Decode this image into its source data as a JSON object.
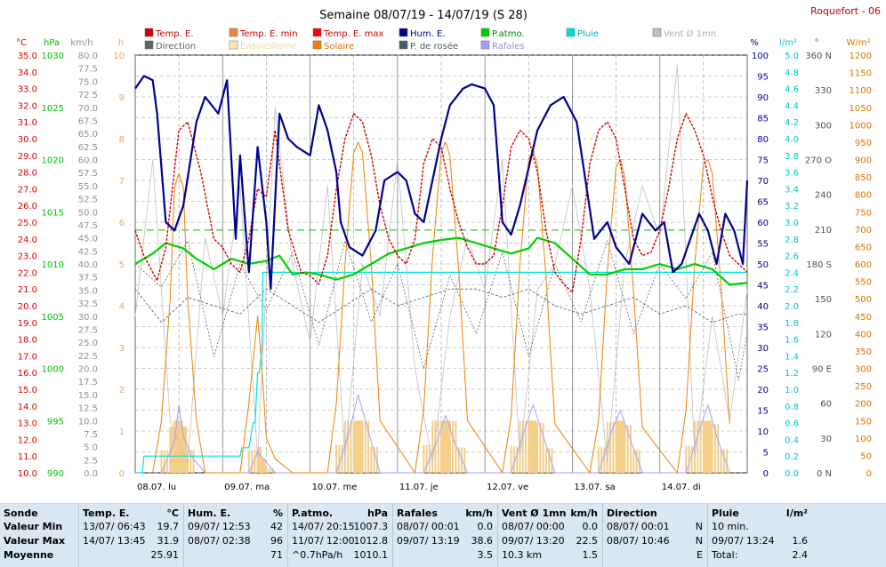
{
  "title": "Semaine 08/07/19 - 14/07/19 (S 28)",
  "station": "Roquefort - 06",
  "axes": {
    "temp": {
      "unit": "°C",
      "min": 10,
      "max": 35,
      "step": 1,
      "color": "#e00000"
    },
    "press": {
      "unit": "hPa",
      "min": 990,
      "max": 1030,
      "step": 5,
      "color": "#00c000"
    },
    "wind": {
      "unit": "km/h",
      "min": 0,
      "max": 80,
      "step": 2.5,
      "color": "#909090"
    },
    "sun": {
      "unit": "h",
      "min": 0,
      "max": 10,
      "step": 1,
      "color": "#f0a060"
    },
    "hum": {
      "unit": "%",
      "min": 0,
      "max": 100,
      "step": 5,
      "color": "#000090"
    },
    "rain": {
      "unit": "l/m²",
      "min": 0,
      "max": 5,
      "step": 0.2,
      "color": "#00c8c8"
    },
    "dir": {
      "unit": "°",
      "min": 0,
      "max": 360,
      "step": 30,
      "color": "#505050",
      "labels": {
        "0": "0 N",
        "90": "90 E",
        "180": "180 S",
        "270": "270 O",
        "360": "360 N"
      }
    },
    "solar": {
      "unit": "W/m²",
      "min": 0,
      "max": 1200,
      "step": 50,
      "color": "#e07000"
    }
  },
  "legend": [
    {
      "label": "Temp. E.",
      "color": "#d00000",
      "text_color": "#d00000"
    },
    {
      "label": "Temp. E. min",
      "color": "#f08040",
      "text_color": "#d00000"
    },
    {
      "label": "Temp. E. max",
      "color": "#ff0000",
      "text_color": "#d00000"
    },
    {
      "label": "Hum. E.",
      "color": "#000090",
      "text_color": "#000090"
    },
    {
      "label": "P.atmo.",
      "color": "#00d000",
      "text_color": "#008000"
    },
    {
      "label": "Pluie",
      "color": "#00e0e0",
      "text_color": "#00b0b0"
    },
    {
      "label": "Vent Ø 1mn",
      "color": "#c0c0c0",
      "text_color": "#b0b0b0"
    },
    {
      "label": "Direction",
      "color": "#606060",
      "text_color": "#606060"
    },
    {
      "label": "Ensoleilleme",
      "color": "#ffe8b0",
      "text_color": "#f0d8a0"
    },
    {
      "label": "Solaire",
      "color": "#f08000",
      "text_color": "#e07000"
    },
    {
      "label": "P. de rosée",
      "color": "#406060",
      "text_color": "#406060"
    },
    {
      "label": "Rafales",
      "color": "#a0a0ff",
      "text_color": "#9090e0"
    }
  ],
  "x_labels": [
    "08.07. lu",
    "09.07. ma",
    "10.07. me",
    "11.07. je",
    "12.07. ve",
    "13.07. sa",
    "14.07. di"
  ],
  "chart_data": {
    "type": "line",
    "title": "Semaine 08/07/19 - 14/07/19 (S 28)",
    "x_unit": "days from 08.07 00:00",
    "xlim": [
      0,
      7
    ],
    "series": [
      {
        "name": "Temp. E.",
        "axis": "temp",
        "color": "#d00000",
        "x": [
          0,
          0.1,
          0.25,
          0.35,
          0.5,
          0.6,
          0.75,
          0.9,
          1.0,
          1.1,
          1.2,
          1.3,
          1.4,
          1.5,
          1.6,
          1.75,
          1.9,
          2.0,
          2.1,
          2.2,
          2.3,
          2.4,
          2.5,
          2.6,
          2.7,
          2.8,
          2.9,
          3.0,
          3.1,
          3.2,
          3.3,
          3.4,
          3.5,
          3.6,
          3.7,
          3.8,
          3.9,
          4.0,
          4.1,
          4.2,
          4.3,
          4.4,
          4.5,
          4.6,
          4.7,
          4.8,
          4.9,
          5.0,
          5.1,
          5.2,
          5.3,
          5.4,
          5.5,
          5.6,
          5.7,
          5.8,
          5.9,
          6.0,
          6.1,
          6.2,
          6.3,
          6.4,
          6.5,
          6.6,
          6.7,
          6.8,
          6.9,
          7.0
        ],
        "y": [
          24.5,
          23,
          21.5,
          23.5,
          30.5,
          31,
          28,
          24,
          23.5,
          22.5,
          22,
          24,
          27,
          26.5,
          30.5,
          24.5,
          22,
          21.8,
          21.3,
          23,
          27,
          30,
          31.5,
          31,
          29,
          26,
          24,
          23,
          22.5,
          24,
          28.5,
          30,
          29.5,
          27,
          25,
          23.5,
          22.5,
          22.5,
          23,
          26,
          29.5,
          30.5,
          30,
          28,
          24.5,
          22,
          21.3,
          20.8,
          24,
          28.5,
          30.5,
          31,
          30,
          27,
          24,
          23,
          23.2,
          24.5,
          27,
          30,
          31.5,
          30.5,
          29,
          26.5,
          24.5,
          23,
          22.5,
          22
        ]
      },
      {
        "name": "Hum. E.",
        "axis": "hum",
        "color": "#000090",
        "x": [
          0,
          0.1,
          0.2,
          0.25,
          0.35,
          0.45,
          0.55,
          0.7,
          0.8,
          0.95,
          1.05,
          1.15,
          1.2,
          1.3,
          1.4,
          1.5,
          1.55,
          1.65,
          1.75,
          1.85,
          2.0,
          2.1,
          2.2,
          2.3,
          2.35,
          2.45,
          2.6,
          2.75,
          2.85,
          3.0,
          3.1,
          3.2,
          3.3,
          3.4,
          3.5,
          3.6,
          3.75,
          3.85,
          4.0,
          4.1,
          4.2,
          4.3,
          4.4,
          4.5,
          4.6,
          4.75,
          4.9,
          5.05,
          5.15,
          5.25,
          5.4,
          5.5,
          5.65,
          5.8,
          5.95,
          6.05,
          6.15,
          6.25,
          6.35,
          6.45,
          6.55,
          6.65,
          6.75,
          6.85,
          6.95,
          7.0
        ],
        "y": [
          92,
          95,
          94,
          86,
          60,
          58,
          64,
          84,
          90,
          86,
          94,
          56,
          76,
          48,
          78,
          60,
          44,
          86,
          80,
          78,
          76,
          88,
          82,
          72,
          60,
          54,
          52,
          58,
          70,
          72,
          70,
          62,
          60,
          70,
          80,
          88,
          92,
          93,
          92,
          88,
          60,
          57,
          64,
          73,
          82,
          88,
          90,
          84,
          70,
          56,
          60,
          54,
          50,
          62,
          58,
          60,
          48,
          50,
          56,
          62,
          58,
          50,
          62,
          58,
          50,
          70
        ]
      },
      {
        "name": "P.atmo.",
        "axis": "press",
        "color": "#00d000",
        "x": [
          0,
          0.2,
          0.35,
          0.55,
          0.7,
          0.9,
          1.1,
          1.3,
          1.5,
          1.65,
          1.8,
          1.95,
          2.1,
          2.3,
          2.5,
          2.7,
          2.9,
          3.1,
          3.3,
          3.5,
          3.7,
          3.9,
          4.1,
          4.3,
          4.5,
          4.6,
          4.8,
          5.0,
          5.2,
          5.4,
          5.6,
          5.8,
          6.0,
          6.2,
          6.4,
          6.6,
          6.8,
          7.0
        ],
        "y": [
          1010,
          1011,
          1012,
          1011.5,
          1010.5,
          1009.5,
          1010.5,
          1010,
          1010.3,
          1010.8,
          1009,
          1009.2,
          1009,
          1008.5,
          1009,
          1010,
          1011,
          1011.5,
          1012,
          1012.3,
          1012.5,
          1012,
          1011.5,
          1011,
          1011.5,
          1012.5,
          1012,
          1010.5,
          1009,
          1009,
          1009.5,
          1009.5,
          1010,
          1009.5,
          1010,
          1009.5,
          1008,
          1008.2
        ]
      },
      {
        "name": "Pluie",
        "axis": "rain",
        "color": "#00e0e0",
        "x": [
          0,
          0.08,
          0.1,
          1.2,
          1.22,
          1.3,
          1.35,
          1.37,
          1.4,
          1.42,
          1.45,
          1.46,
          1.48,
          7.0
        ],
        "y": [
          0,
          0,
          0.2,
          0.2,
          0.3,
          0.3,
          0.6,
          0.6,
          1.2,
          1.2,
          1.5,
          2.4,
          2.4,
          2.4
        ]
      },
      {
        "name": "P. de rosée",
        "axis": "temp",
        "color": "#406060",
        "x": [
          0,
          0.3,
          0.6,
          0.9,
          1.2,
          1.5,
          1.8,
          2.1,
          2.4,
          2.7,
          3.0,
          3.3,
          3.6,
          3.9,
          4.2,
          4.5,
          4.8,
          5.1,
          5.4,
          5.7,
          6.0,
          6.3,
          6.6,
          6.9,
          7.0
        ],
        "y": [
          21,
          19,
          20.5,
          20,
          19.5,
          21,
          20,
          19,
          20,
          21,
          20,
          20.5,
          21,
          21,
          20.5,
          21,
          20,
          19.5,
          20,
          20.5,
          19.5,
          20,
          19,
          19.5,
          19.5
        ]
      },
      {
        "name": "Solaire",
        "axis": "solar",
        "color": "#f08000",
        "x": [
          0.2,
          0.3,
          0.4,
          0.45,
          0.5,
          0.55,
          0.6,
          0.7,
          0.8,
          1.2,
          1.3,
          1.4,
          1.45,
          1.5,
          1.6,
          1.8,
          2.2,
          2.3,
          2.4,
          2.5,
          2.55,
          2.6,
          2.7,
          2.8,
          3.2,
          3.3,
          3.4,
          3.5,
          3.55,
          3.6,
          3.7,
          3.8,
          4.2,
          4.3,
          4.4,
          4.5,
          4.55,
          4.6,
          4.7,
          4.8,
          5.2,
          5.3,
          5.4,
          5.5,
          5.55,
          5.6,
          5.7,
          5.8,
          6.2,
          6.3,
          6.4,
          6.5,
          6.55,
          6.6,
          6.7,
          6.8
        ],
        "y": [
          0,
          150,
          500,
          820,
          860,
          820,
          500,
          150,
          0,
          0,
          200,
          450,
          300,
          100,
          40,
          0,
          0,
          200,
          600,
          920,
          950,
          920,
          600,
          150,
          0,
          180,
          620,
          920,
          950,
          910,
          580,
          150,
          0,
          160,
          600,
          900,
          930,
          880,
          560,
          140,
          0,
          150,
          580,
          880,
          900,
          850,
          520,
          130,
          0,
          180,
          600,
          890,
          900,
          860,
          540,
          140
        ]
      },
      {
        "name": "Rafales",
        "axis": "wind",
        "color": "#a0a0ff",
        "x": [
          0.3,
          0.45,
          0.5,
          0.55,
          0.65,
          0.8,
          1.3,
          1.4,
          1.5,
          1.6,
          2.3,
          2.45,
          2.55,
          2.65,
          2.8,
          3.3,
          3.45,
          3.55,
          3.65,
          3.8,
          4.3,
          4.45,
          4.55,
          4.65,
          4.8,
          5.3,
          5.45,
          5.55,
          5.65,
          5.8,
          6.3,
          6.45,
          6.55,
          6.65,
          6.8
        ],
        "y": [
          0,
          6,
          13,
          7,
          3,
          0,
          0,
          4,
          2,
          0,
          0,
          8,
          15,
          9,
          0,
          0,
          6,
          11,
          6,
          0,
          0,
          8,
          13,
          8,
          0,
          0,
          8,
          12,
          7,
          0,
          0,
          8,
          13,
          7,
          0
        ]
      },
      {
        "name": "Vent Ø 1mn",
        "axis": "wind",
        "color": "#c0c0c0",
        "x": [
          0,
          0.2,
          0.4,
          0.6,
          0.8,
          1.0,
          1.2,
          1.4,
          1.6,
          1.8,
          2.0,
          2.2,
          2.4,
          2.6,
          2.8,
          3.0,
          3.2,
          3.4,
          3.6,
          3.8,
          4.0,
          4.2,
          4.4,
          4.6,
          4.8,
          5.0,
          5.2,
          5.4,
          5.6,
          5.8,
          6.0,
          6.2,
          6.4,
          6.6,
          6.8,
          7.0
        ],
        "y": [
          30,
          60,
          10,
          2,
          45,
          30,
          55,
          3,
          70,
          40,
          25,
          55,
          3,
          40,
          30,
          60,
          20,
          2,
          30,
          45,
          35,
          60,
          3,
          35,
          40,
          55,
          35,
          2,
          40,
          55,
          45,
          78,
          3,
          30,
          10,
          35
        ]
      },
      {
        "name": "Direction",
        "axis": "dir",
        "color": "#606060",
        "x": [
          0,
          0.3,
          0.6,
          0.9,
          1.2,
          1.5,
          1.8,
          2.1,
          2.4,
          2.7,
          3.0,
          3.3,
          3.6,
          3.9,
          4.2,
          4.5,
          4.8,
          5.1,
          5.4,
          5.7,
          6.0,
          6.3,
          6.6,
          6.9,
          7.0
        ],
        "y": [
          180,
          160,
          200,
          100,
          180,
          140,
          190,
          110,
          200,
          130,
          180,
          90,
          170,
          120,
          190,
          100,
          180,
          130,
          200,
          120,
          180,
          150,
          190,
          80,
          120
        ]
      }
    ],
    "reference_line": {
      "axis": "press",
      "y": 1013.25,
      "color": "#00c000",
      "style": "dashed"
    }
  },
  "stats": {
    "row_labels": {
      "sonde": "Sonde",
      "min": "Valeur Min",
      "max": "Valeur Max",
      "avg": "Moyenne"
    },
    "temp": {
      "title": "Temp. E.",
      "unit": "°C",
      "min_t": "13/07/ 06:43",
      "min_v": "19.7",
      "max_t": "14/07/ 13:45",
      "max_v": "31.9",
      "avg": "25.91"
    },
    "hum": {
      "title": "Hum. E.",
      "unit": "%",
      "min_t": "09/07/ 12:53",
      "min_v": "42",
      "max_t": "08/07/ 02:38",
      "max_v": "96",
      "avg": "71"
    },
    "press": {
      "title": "P.atmo.",
      "unit": "hPa",
      "min_t": "14/07/ 20:15",
      "min_v": "1007.3",
      "max_t": "11/07/ 12:00",
      "max_v": "1012.8",
      "avg_t": "^0.7hPa/h",
      "avg": "1010.1"
    },
    "gust": {
      "title": "Rafales",
      "unit": "km/h",
      "min_t": "08/07/ 00:01",
      "min_v": "0.0",
      "max_t": "09/07/ 13:19",
      "max_v": "38.6",
      "avg": "3.5"
    },
    "wind": {
      "title": "Vent Ø 1mn",
      "unit": "km/h",
      "min_t": "08/07/ 00:00",
      "min_v": "0.0",
      "max_t": "09/07/ 13:20",
      "max_v": "22.5",
      "avg_t": "10.3 km",
      "avg": "1.5"
    },
    "dir": {
      "title": "Direction",
      "min_t": "08/07/ 00:01",
      "min_v": "N",
      "max_t": "08/07/ 10:46",
      "max_v": "N",
      "avg": "E"
    },
    "rain": {
      "title": "Pluie",
      "unit": "l/m²",
      "min_t": "10 min.",
      "min_v": "",
      "max_t": "09/07/ 13:24",
      "max_v": "1.6",
      "avg_t": "Total:",
      "avg": "2.4"
    }
  }
}
